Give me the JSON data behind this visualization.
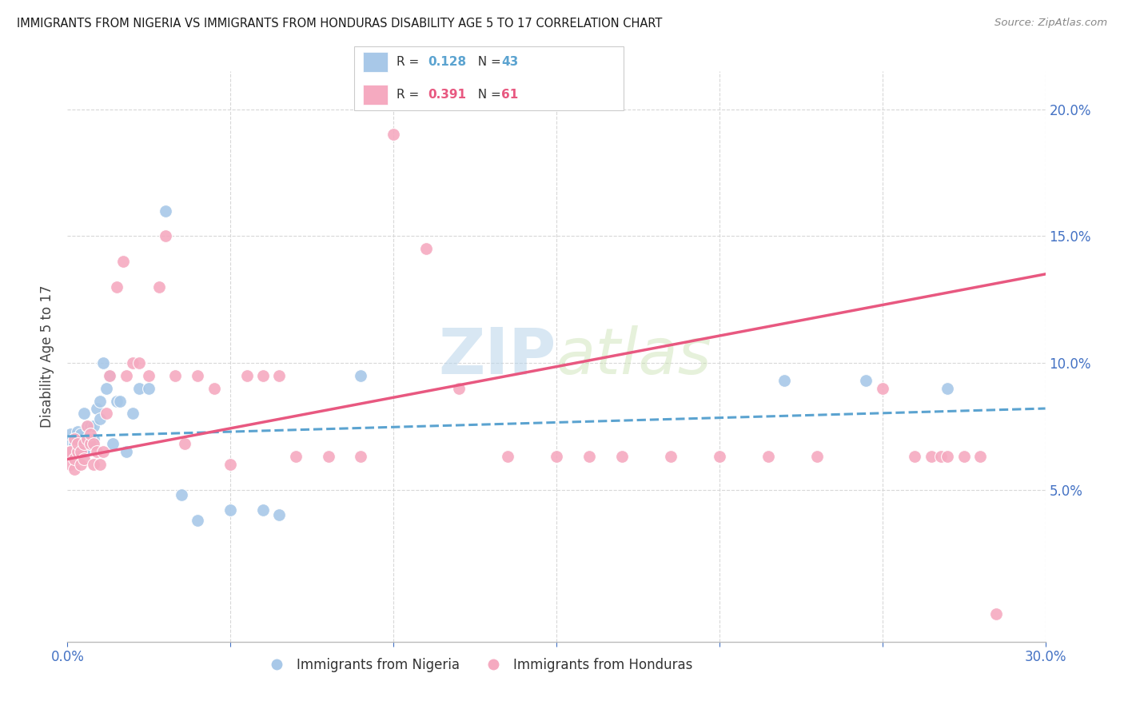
{
  "title": "IMMIGRANTS FROM NIGERIA VS IMMIGRANTS FROM HONDURAS DISABILITY AGE 5 TO 17 CORRELATION CHART",
  "source": "Source: ZipAtlas.com",
  "ylabel": "Disability Age 5 to 17",
  "watermark_zip": "ZIP",
  "watermark_atlas": "atlas",
  "nigeria_R": "0.128",
  "nigeria_N": "43",
  "honduras_R": "0.391",
  "honduras_N": "61",
  "nigeria_color": "#a8c8e8",
  "honduras_color": "#f5aac0",
  "nigeria_line_color": "#5ba3d0",
  "honduras_line_color": "#e85880",
  "xlim": [
    0.0,
    0.3
  ],
  "ylim": [
    -0.01,
    0.215
  ],
  "background_color": "#ffffff",
  "grid_color": "#d8d8d8",
  "title_color": "#1a1a1a",
  "axis_color": "#4472c4",
  "nigeria_x": [
    0.0005,
    0.001,
    0.001,
    0.002,
    0.002,
    0.002,
    0.003,
    0.003,
    0.003,
    0.004,
    0.004,
    0.005,
    0.005,
    0.005,
    0.006,
    0.006,
    0.007,
    0.007,
    0.008,
    0.008,
    0.009,
    0.01,
    0.01,
    0.011,
    0.012,
    0.013,
    0.014,
    0.015,
    0.016,
    0.018,
    0.02,
    0.022,
    0.025,
    0.03,
    0.035,
    0.04,
    0.05,
    0.06,
    0.065,
    0.09,
    0.22,
    0.245,
    0.27
  ],
  "nigeria_y": [
    0.068,
    0.072,
    0.065,
    0.07,
    0.068,
    0.065,
    0.067,
    0.07,
    0.073,
    0.068,
    0.072,
    0.065,
    0.068,
    0.08,
    0.07,
    0.075,
    0.068,
    0.075,
    0.07,
    0.075,
    0.082,
    0.078,
    0.085,
    0.1,
    0.09,
    0.095,
    0.068,
    0.085,
    0.085,
    0.065,
    0.08,
    0.09,
    0.09,
    0.16,
    0.048,
    0.038,
    0.042,
    0.042,
    0.04,
    0.095,
    0.093,
    0.093,
    0.09
  ],
  "honduras_x": [
    0.0005,
    0.001,
    0.001,
    0.002,
    0.002,
    0.002,
    0.003,
    0.003,
    0.004,
    0.004,
    0.005,
    0.005,
    0.006,
    0.006,
    0.007,
    0.007,
    0.008,
    0.008,
    0.009,
    0.01,
    0.011,
    0.012,
    0.013,
    0.015,
    0.017,
    0.018,
    0.02,
    0.022,
    0.025,
    0.028,
    0.03,
    0.033,
    0.036,
    0.04,
    0.045,
    0.05,
    0.055,
    0.06,
    0.065,
    0.07,
    0.08,
    0.09,
    0.1,
    0.11,
    0.12,
    0.135,
    0.15,
    0.16,
    0.17,
    0.185,
    0.2,
    0.215,
    0.23,
    0.25,
    0.26,
    0.265,
    0.268,
    0.27,
    0.275,
    0.28,
    0.285
  ],
  "honduras_y": [
    0.065,
    0.06,
    0.065,
    0.058,
    0.062,
    0.07,
    0.065,
    0.068,
    0.06,
    0.065,
    0.062,
    0.068,
    0.07,
    0.075,
    0.068,
    0.072,
    0.06,
    0.068,
    0.065,
    0.06,
    0.065,
    0.08,
    0.095,
    0.13,
    0.14,
    0.095,
    0.1,
    0.1,
    0.095,
    0.13,
    0.15,
    0.095,
    0.068,
    0.095,
    0.09,
    0.06,
    0.095,
    0.095,
    0.095,
    0.063,
    0.063,
    0.063,
    0.19,
    0.145,
    0.09,
    0.063,
    0.063,
    0.063,
    0.063,
    0.063,
    0.063,
    0.063,
    0.063,
    0.09,
    0.063,
    0.063,
    0.063,
    0.063,
    0.063,
    0.063,
    0.001
  ],
  "nigeria_line_x0": 0.0,
  "nigeria_line_y0": 0.071,
  "nigeria_line_x1": 0.3,
  "nigeria_line_y1": 0.082,
  "honduras_line_x0": 0.0,
  "honduras_line_y0": 0.062,
  "honduras_line_x1": 0.3,
  "honduras_line_y1": 0.135
}
